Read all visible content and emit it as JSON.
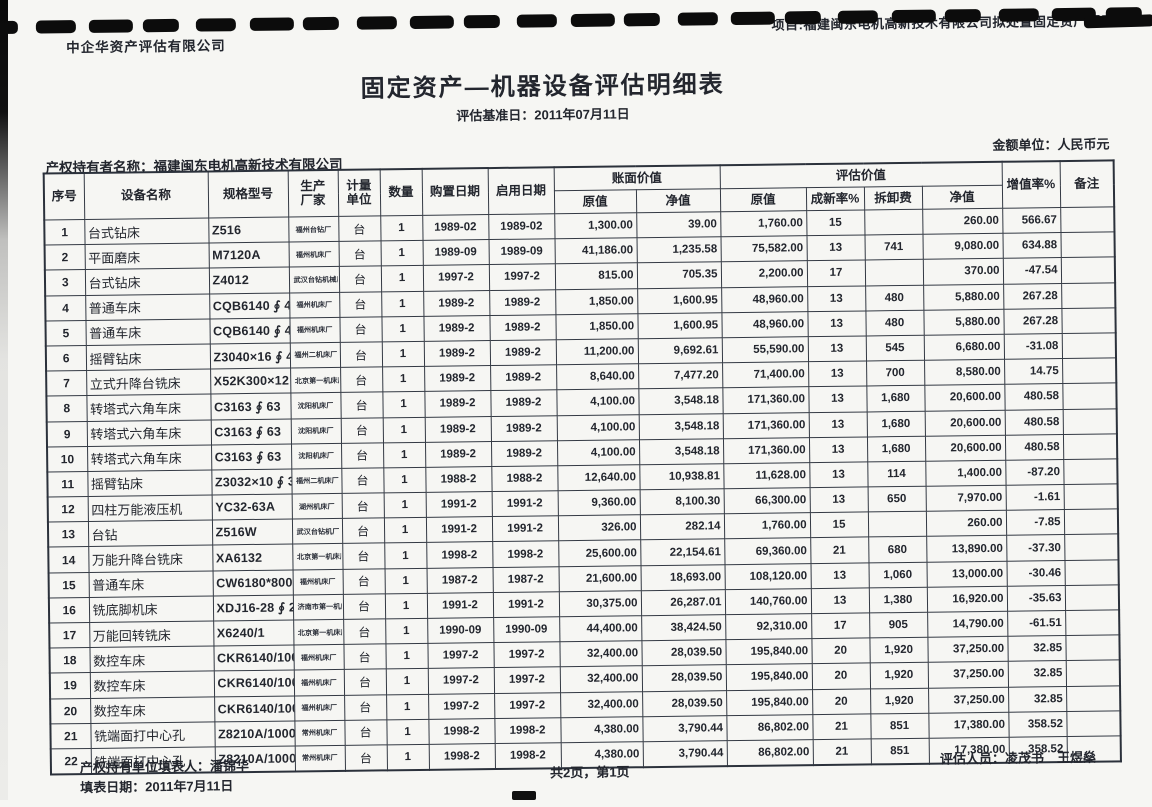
{
  "colors": {
    "ink": "#23262e",
    "border": "#343a44",
    "binding": "#0c0c0c"
  },
  "header": {
    "company": "中企华资产评估有限公司",
    "project": "项目:福建闽东电机高新技术有限公司拟处置固定资产项目",
    "title": "固定资产—机器设备评估明细表",
    "base_date": "评估基准日：2011年07月11日",
    "unit_note": "金额单位：人民币元",
    "owner": "产权持有者名称：福建闽东电机高新技术有限公司"
  },
  "table": {
    "headers": {
      "seq": "序号",
      "name": "设备名称",
      "model": "规格型号",
      "maker": "生产厂家",
      "unit": "计量单位",
      "qty": "数量",
      "buy_date": "购置日期",
      "use_date": "启用日期",
      "book_value": "账面价值",
      "eval_value": "评估价值",
      "orig": "原值",
      "net": "净值",
      "orig2": "原值",
      "new_rate": "成新率%",
      "dismantle": "拆卸费",
      "net2": "净值",
      "inc_rate": "增值率%",
      "remark": "备注"
    },
    "rows": [
      {
        "seq": "1",
        "name": "台式钻床",
        "model": "Z516",
        "maker": "福州台钻厂",
        "unit": "台",
        "qty": "1",
        "buy_date": "1989-02",
        "use_date": "1989-02",
        "book_orig": "1,300.00",
        "book_net": "39.00",
        "eval_orig": "1,760.00",
        "new_rate": "15",
        "dismantle": "",
        "eval_net": "260.00",
        "inc_rate": "566.67",
        "remark": ""
      },
      {
        "seq": "2",
        "name": "平面磨床",
        "model": "M7120A",
        "maker": "福州机床厂",
        "unit": "台",
        "qty": "1",
        "buy_date": "1989-09",
        "use_date": "1989-09",
        "book_orig": "41,186.00",
        "book_net": "1,235.58",
        "eval_orig": "75,582.00",
        "new_rate": "13",
        "dismantle": "741",
        "eval_net": "9,080.00",
        "inc_rate": "634.88",
        "remark": ""
      },
      {
        "seq": "3",
        "name": "台式钻床",
        "model": "Z4012",
        "maker": "武汉台钻机械厂",
        "unit": "台",
        "qty": "1",
        "buy_date": "1997-2",
        "use_date": "1997-2",
        "book_orig": "815.00",
        "book_net": "705.35",
        "eval_orig": "2,200.00",
        "new_rate": "17",
        "dismantle": "",
        "eval_net": "370.00",
        "inc_rate": "-47.54",
        "remark": ""
      },
      {
        "seq": "4",
        "name": "普通车床",
        "model": "CQB6140 ∮ 400",
        "maker": "福州机床厂",
        "unit": "台",
        "qty": "1",
        "buy_date": "1989-2",
        "use_date": "1989-2",
        "book_orig": "1,850.00",
        "book_net": "1,600.95",
        "eval_orig": "48,960.00",
        "new_rate": "13",
        "dismantle": "480",
        "eval_net": "5,880.00",
        "inc_rate": "267.28",
        "remark": ""
      },
      {
        "seq": "5",
        "name": "普通车床",
        "model": "CQB6140 ∮ 400",
        "maker": "福州机床厂",
        "unit": "台",
        "qty": "1",
        "buy_date": "1989-2",
        "use_date": "1989-2",
        "book_orig": "1,850.00",
        "book_net": "1,600.95",
        "eval_orig": "48,960.00",
        "new_rate": "13",
        "dismantle": "480",
        "eval_net": "5,880.00",
        "inc_rate": "267.28",
        "remark": ""
      },
      {
        "seq": "6",
        "name": "摇臂钻床",
        "model": "Z3040×16 ∮ 40",
        "maker": "福州二机床厂",
        "unit": "台",
        "qty": "1",
        "buy_date": "1989-2",
        "use_date": "1989-2",
        "book_orig": "11,200.00",
        "book_net": "9,692.61",
        "eval_orig": "55,590.00",
        "new_rate": "13",
        "dismantle": "545",
        "eval_net": "6,680.00",
        "inc_rate": "-31.08",
        "remark": ""
      },
      {
        "seq": "7",
        "name": "立式升降台铣床",
        "model": "X52K300×12",
        "maker": "北京第一机床厂",
        "unit": "台",
        "qty": "1",
        "buy_date": "1989-2",
        "use_date": "1989-2",
        "book_orig": "8,640.00",
        "book_net": "7,477.20",
        "eval_orig": "71,400.00",
        "new_rate": "13",
        "dismantle": "700",
        "eval_net": "8,580.00",
        "inc_rate": "14.75",
        "remark": ""
      },
      {
        "seq": "8",
        "name": "转塔式六角车床",
        "model": "C3163 ∮ 63",
        "maker": "沈阳机床厂",
        "unit": "台",
        "qty": "1",
        "buy_date": "1989-2",
        "use_date": "1989-2",
        "book_orig": "4,100.00",
        "book_net": "3,548.18",
        "eval_orig": "171,360.00",
        "new_rate": "13",
        "dismantle": "1,680",
        "eval_net": "20,600.00",
        "inc_rate": "480.58",
        "remark": ""
      },
      {
        "seq": "9",
        "name": "转塔式六角车床",
        "model": "C3163 ∮ 63",
        "maker": "沈阳机床厂",
        "unit": "台",
        "qty": "1",
        "buy_date": "1989-2",
        "use_date": "1989-2",
        "book_orig": "4,100.00",
        "book_net": "3,548.18",
        "eval_orig": "171,360.00",
        "new_rate": "13",
        "dismantle": "1,680",
        "eval_net": "20,600.00",
        "inc_rate": "480.58",
        "remark": ""
      },
      {
        "seq": "10",
        "name": "转塔式六角车床",
        "model": "C3163 ∮ 63",
        "maker": "沈阳机床厂",
        "unit": "台",
        "qty": "1",
        "buy_date": "1989-2",
        "use_date": "1989-2",
        "book_orig": "4,100.00",
        "book_net": "3,548.18",
        "eval_orig": "171,360.00",
        "new_rate": "13",
        "dismantle": "1,680",
        "eval_net": "20,600.00",
        "inc_rate": "480.58",
        "remark": ""
      },
      {
        "seq": "11",
        "name": "摇臂钻床",
        "model": "Z3032×10 ∮ 32",
        "maker": "福州二机床厂",
        "unit": "台",
        "qty": "1",
        "buy_date": "1988-2",
        "use_date": "1988-2",
        "book_orig": "12,640.00",
        "book_net": "10,938.81",
        "eval_orig": "11,628.00",
        "new_rate": "13",
        "dismantle": "114",
        "eval_net": "1,400.00",
        "inc_rate": "-87.20",
        "remark": ""
      },
      {
        "seq": "12",
        "name": "四柱万能液压机",
        "model": "YC32-63A",
        "maker": "湖州机床厂",
        "unit": "台",
        "qty": "1",
        "buy_date": "1991-2",
        "use_date": "1991-2",
        "book_orig": "9,360.00",
        "book_net": "8,100.30",
        "eval_orig": "66,300.00",
        "new_rate": "13",
        "dismantle": "650",
        "eval_net": "7,970.00",
        "inc_rate": "-1.61",
        "remark": ""
      },
      {
        "seq": "13",
        "name": "台钻",
        "model": "Z516W",
        "maker": "武汉台钻机厂",
        "unit": "台",
        "qty": "1",
        "buy_date": "1991-2",
        "use_date": "1991-2",
        "book_orig": "326.00",
        "book_net": "282.14",
        "eval_orig": "1,760.00",
        "new_rate": "15",
        "dismantle": "",
        "eval_net": "260.00",
        "inc_rate": "-7.85",
        "remark": ""
      },
      {
        "seq": "14",
        "name": "万能升降台铣床",
        "model": "XA6132",
        "maker": "北京第一机床厂",
        "unit": "台",
        "qty": "1",
        "buy_date": "1998-2",
        "use_date": "1998-2",
        "book_orig": "25,600.00",
        "book_net": "22,154.61",
        "eval_orig": "69,360.00",
        "new_rate": "21",
        "dismantle": "680",
        "eval_net": "13,890.00",
        "inc_rate": "-37.30",
        "remark": ""
      },
      {
        "seq": "15",
        "name": "普通车床",
        "model": "CW6180*800",
        "maker": "福州机床厂",
        "unit": "台",
        "qty": "1",
        "buy_date": "1987-2",
        "use_date": "1987-2",
        "book_orig": "21,600.00",
        "book_net": "18,693.00",
        "eval_orig": "108,120.00",
        "new_rate": "13",
        "dismantle": "1,060",
        "eval_net": "13,000.00",
        "inc_rate": "-30.46",
        "remark": ""
      },
      {
        "seq": "16",
        "name": "铣底脚机床",
        "model": "XDJ16-28 ∮ 24",
        "maker": "济南市第一机床厂",
        "unit": "台",
        "qty": "1",
        "buy_date": "1991-2",
        "use_date": "1991-2",
        "book_orig": "30,375.00",
        "book_net": "26,287.01",
        "eval_orig": "140,760.00",
        "new_rate": "13",
        "dismantle": "1,380",
        "eval_net": "16,920.00",
        "inc_rate": "-35.63",
        "remark": ""
      },
      {
        "seq": "17",
        "name": "万能回转铣床",
        "model": "X6240/1",
        "maker": "北京第一机床厂",
        "unit": "台",
        "qty": "1",
        "buy_date": "1990-09",
        "use_date": "1990-09",
        "book_orig": "44,400.00",
        "book_net": "38,424.50",
        "eval_orig": "92,310.00",
        "new_rate": "17",
        "dismantle": "905",
        "eval_net": "14,790.00",
        "inc_rate": "-61.51",
        "remark": ""
      },
      {
        "seq": "18",
        "name": "数控车床",
        "model": "CKR6140/1000",
        "maker": "福州机床厂",
        "unit": "台",
        "qty": "1",
        "buy_date": "1997-2",
        "use_date": "1997-2",
        "book_orig": "32,400.00",
        "book_net": "28,039.50",
        "eval_orig": "195,840.00",
        "new_rate": "20",
        "dismantle": "1,920",
        "eval_net": "37,250.00",
        "inc_rate": "32.85",
        "remark": ""
      },
      {
        "seq": "19",
        "name": "数控车床",
        "model": "CKR6140/1000",
        "maker": "福州机床厂",
        "unit": "台",
        "qty": "1",
        "buy_date": "1997-2",
        "use_date": "1997-2",
        "book_orig": "32,400.00",
        "book_net": "28,039.50",
        "eval_orig": "195,840.00",
        "new_rate": "20",
        "dismantle": "1,920",
        "eval_net": "37,250.00",
        "inc_rate": "32.85",
        "remark": ""
      },
      {
        "seq": "20",
        "name": "数控车床",
        "model": "CKR6140/1000",
        "maker": "福州机床厂",
        "unit": "台",
        "qty": "1",
        "buy_date": "1997-2",
        "use_date": "1997-2",
        "book_orig": "32,400.00",
        "book_net": "28,039.50",
        "eval_orig": "195,840.00",
        "new_rate": "20",
        "dismantle": "1,920",
        "eval_net": "37,250.00",
        "inc_rate": "32.85",
        "remark": ""
      },
      {
        "seq": "21",
        "name": "铣端面打中心孔",
        "model": "Z8210A/1000",
        "maker": "常州机床厂",
        "unit": "台",
        "qty": "1",
        "buy_date": "1998-2",
        "use_date": "1998-2",
        "book_orig": "4,380.00",
        "book_net": "3,790.44",
        "eval_orig": "86,802.00",
        "new_rate": "21",
        "dismantle": "851",
        "eval_net": "17,380.00",
        "inc_rate": "358.52",
        "remark": ""
      },
      {
        "seq": "22",
        "name": "铣端面打中心孔",
        "model": "Z8210A/1000",
        "maker": "常州机床厂",
        "unit": "台",
        "qty": "1",
        "buy_date": "1998-2",
        "use_date": "1998-2",
        "book_orig": "4,380.00",
        "book_net": "3,790.44",
        "eval_orig": "86,802.00",
        "new_rate": "21",
        "dismantle": "851",
        "eval_net": "17,380.00",
        "inc_rate": "358.52",
        "remark": ""
      }
    ]
  },
  "footer": {
    "filler": "产权持有单位填表人：潘锦华",
    "fill_date": "填表日期：2011年7月11日",
    "page_info": "共2页，第1页",
    "appraisers": "评估人员：凌茂书　王煜燊"
  }
}
